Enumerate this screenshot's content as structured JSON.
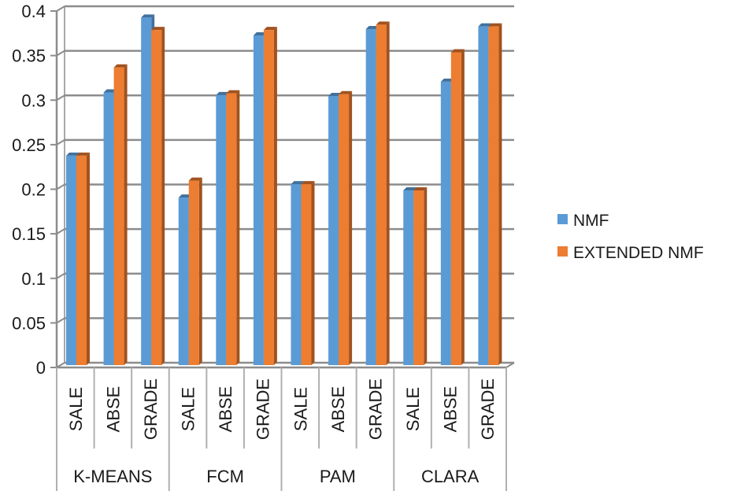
{
  "chart_data": {
    "type": "bar",
    "style": "3d-clustered-column",
    "title": "",
    "xlabel": "",
    "ylabel": "",
    "ylim": [
      0,
      0.4
    ],
    "yticks": [
      "0",
      "0.05",
      "0.1",
      "0.15",
      "0.2",
      "0.25",
      "0.3",
      "0.35",
      "0.4"
    ],
    "grid": true,
    "legend_position": "right",
    "groups": [
      {
        "label": "K-MEANS",
        "categories": [
          "SALE",
          "ABSE",
          "GRADE"
        ]
      },
      {
        "label": "FCM",
        "categories": [
          "SALE",
          "ABSE",
          "GRADE"
        ]
      },
      {
        "label": "PAM",
        "categories": [
          "SALE",
          "ABSE",
          "GRADE"
        ]
      },
      {
        "label": "CLARA",
        "categories": [
          "SALE",
          "ABSE",
          "GRADE"
        ]
      }
    ],
    "categories": [
      "K-MEANS SALE",
      "K-MEANS ABSE",
      "K-MEANS GRADE",
      "FCM SALE",
      "FCM ABSE",
      "FCM GRADE",
      "PAM SALE",
      "PAM ABSE",
      "PAM GRADE",
      "CLARA SALE",
      "CLARA ABSE",
      "CLARA GRADE"
    ],
    "series": [
      {
        "name": "NMF",
        "color": "#5b9bd5",
        "side_color": "#41719c",
        "values": [
          0.235,
          0.306,
          0.39,
          0.188,
          0.303,
          0.37,
          0.203,
          0.302,
          0.377,
          0.196,
          0.318,
          0.38
        ]
      },
      {
        "name": "EXTENDED NMF",
        "color": "#ed7d31",
        "side_color": "#a0521f",
        "values": [
          0.235,
          0.334,
          0.376,
          0.207,
          0.305,
          0.376,
          0.203,
          0.304,
          0.382,
          0.196,
          0.351,
          0.38
        ]
      }
    ]
  },
  "legend": {
    "items": [
      {
        "label": "NMF",
        "color": "#5b9bd5"
      },
      {
        "label": "EXTENDED NMF",
        "color": "#ed7d31"
      }
    ]
  },
  "colors": {
    "grid": "#8c8c8c",
    "axis": "#8c8c8c",
    "separator": "#b0b0b0"
  }
}
